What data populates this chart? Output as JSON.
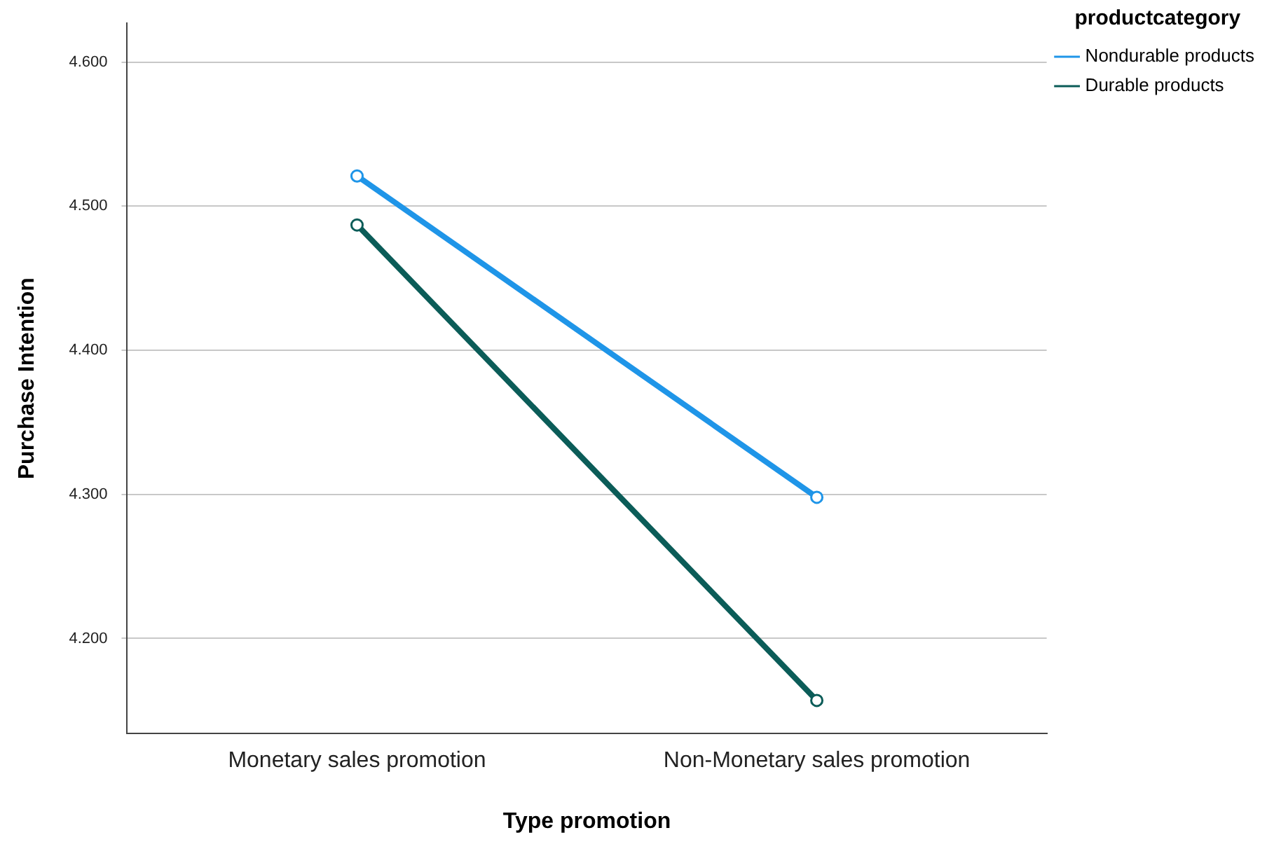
{
  "chart_data": {
    "type": "line",
    "xlabel": "Type promotion",
    "ylabel": "Purchase Intention",
    "legend_title": "productcategory",
    "categories": [
      "Monetary sales promotion",
      "Non-Monetary sales promotion"
    ],
    "series": [
      {
        "name": "Nondurable products",
        "color": "#1f95e8",
        "values": [
          4.521,
          4.298
        ]
      },
      {
        "name": "Durable products",
        "color": "#0b5c58",
        "values": [
          4.487,
          4.157
        ]
      }
    ],
    "ylim": [
      4.134,
      4.627
    ],
    "yticks": [
      {
        "value": 4.2,
        "label": "4.200"
      },
      {
        "value": 4.3,
        "label": "4.300"
      },
      {
        "value": 4.4,
        "label": "4.400"
      },
      {
        "value": 4.5,
        "label": "4.500"
      },
      {
        "value": 4.6,
        "label": "4.600"
      }
    ],
    "grid": "y",
    "legend": "top right",
    "marker": "circle",
    "line_style": "solid"
  }
}
